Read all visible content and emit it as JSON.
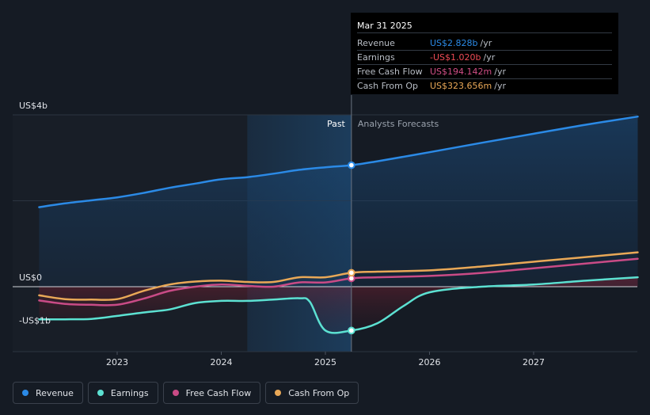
{
  "tooltip": {
    "date": "Mar 31 2025",
    "rows": [
      {
        "label": "Revenue",
        "value": "US$2.828b",
        "unit": "/yr",
        "color": "#2b8ae6"
      },
      {
        "label": "Earnings",
        "value": "-US$1.020b",
        "unit": "/yr",
        "color": "#ef4b55"
      },
      {
        "label": "Free Cash Flow",
        "value": "US$194.142m",
        "unit": "/yr",
        "color": "#d14e86"
      },
      {
        "label": "Cash From Op",
        "value": "US$323.656m",
        "unit": "/yr",
        "color": "#e9a857"
      }
    ]
  },
  "past_label": "Past",
  "forecast_label": "Analysts Forecasts",
  "legend": [
    {
      "label": "Revenue",
      "color": "#2b8ae6",
      "icon": "dot"
    },
    {
      "label": "Earnings",
      "color": "#5ce1d2",
      "icon": "dot"
    },
    {
      "label": "Free Cash Flow",
      "color": "#c94b86",
      "icon": "dot"
    },
    {
      "label": "Cash From Op",
      "color": "#e9a857",
      "icon": "dot"
    }
  ],
  "chart_data": {
    "type": "line",
    "unit": "US$ billions",
    "y_tick_labels": [
      "US$4b",
      "US$0",
      "-US$1b"
    ],
    "y_ticks": [
      4,
      0,
      -1
    ],
    "ylim": [
      -1.5,
      4
    ],
    "x_tick_labels": [
      "2023",
      "2024",
      "2025",
      "2026",
      "2027"
    ],
    "x_ticks": [
      2023,
      2024,
      2025,
      2026,
      2027
    ],
    "xlim": [
      2021.9,
      2028.0
    ],
    "past_end": 2025.25,
    "highlight_start": 2024.25,
    "series": [
      {
        "name": "Revenue",
        "color": "#2b8ae6",
        "points": [
          [
            2022.25,
            1.85
          ],
          [
            2022.5,
            1.94
          ],
          [
            2022.75,
            2.01
          ],
          [
            2023.0,
            2.08
          ],
          [
            2023.25,
            2.18
          ],
          [
            2023.5,
            2.3
          ],
          [
            2023.75,
            2.4
          ],
          [
            2024.0,
            2.5
          ],
          [
            2024.25,
            2.55
          ],
          [
            2024.5,
            2.63
          ],
          [
            2024.75,
            2.72
          ],
          [
            2025.0,
            2.78
          ],
          [
            2025.25,
            2.828
          ],
          [
            2025.5,
            2.92
          ],
          [
            2026.0,
            3.13
          ],
          [
            2026.5,
            3.35
          ],
          [
            2027.0,
            3.56
          ],
          [
            2027.5,
            3.77
          ],
          [
            2028.0,
            3.96
          ]
        ]
      },
      {
        "name": "Earnings",
        "color": "#5ce1d2",
        "points": [
          [
            2022.25,
            -0.76
          ],
          [
            2022.5,
            -0.76
          ],
          [
            2022.75,
            -0.75
          ],
          [
            2023.0,
            -0.68
          ],
          [
            2023.25,
            -0.6
          ],
          [
            2023.5,
            -0.53
          ],
          [
            2023.75,
            -0.38
          ],
          [
            2024.0,
            -0.33
          ],
          [
            2024.25,
            -0.33
          ],
          [
            2024.5,
            -0.3
          ],
          [
            2024.75,
            -0.27
          ],
          [
            2024.85,
            -0.35
          ],
          [
            2025.0,
            -1.02
          ],
          [
            2025.25,
            -1.02
          ],
          [
            2025.5,
            -0.85
          ],
          [
            2025.75,
            -0.45
          ],
          [
            2026.0,
            -0.13
          ],
          [
            2026.5,
            0.0
          ],
          [
            2027.0,
            0.05
          ],
          [
            2027.5,
            0.14
          ],
          [
            2028.0,
            0.22
          ]
        ]
      },
      {
        "name": "Free Cash Flow",
        "color": "#c94b86",
        "points": [
          [
            2022.25,
            -0.32
          ],
          [
            2022.5,
            -0.4
          ],
          [
            2022.75,
            -0.42
          ],
          [
            2023.0,
            -0.42
          ],
          [
            2023.25,
            -0.28
          ],
          [
            2023.5,
            -0.1
          ],
          [
            2023.75,
            0.0
          ],
          [
            2024.0,
            0.05
          ],
          [
            2024.25,
            0.02
          ],
          [
            2024.5,
            0.0
          ],
          [
            2024.75,
            0.1
          ],
          [
            2025.0,
            0.1
          ],
          [
            2025.25,
            0.194
          ],
          [
            2025.5,
            0.22
          ],
          [
            2026.0,
            0.25
          ],
          [
            2026.5,
            0.32
          ],
          [
            2027.0,
            0.43
          ],
          [
            2027.5,
            0.54
          ],
          [
            2028.0,
            0.65
          ]
        ]
      },
      {
        "name": "Cash From Op",
        "color": "#e9a857",
        "points": [
          [
            2022.25,
            -0.2
          ],
          [
            2022.5,
            -0.29
          ],
          [
            2022.75,
            -0.3
          ],
          [
            2023.0,
            -0.29
          ],
          [
            2023.25,
            -0.1
          ],
          [
            2023.5,
            0.05
          ],
          [
            2023.75,
            0.12
          ],
          [
            2024.0,
            0.14
          ],
          [
            2024.25,
            0.11
          ],
          [
            2024.5,
            0.11
          ],
          [
            2024.75,
            0.22
          ],
          [
            2025.0,
            0.22
          ],
          [
            2025.25,
            0.324
          ],
          [
            2025.5,
            0.35
          ],
          [
            2026.0,
            0.38
          ],
          [
            2026.5,
            0.47
          ],
          [
            2027.0,
            0.58
          ],
          [
            2027.5,
            0.69
          ],
          [
            2028.0,
            0.8
          ]
        ]
      }
    ],
    "markers": [
      {
        "series": "Revenue",
        "x": 2025.25,
        "y": 2.828
      },
      {
        "series": "Earnings",
        "x": 2025.25,
        "y": -1.02
      },
      {
        "series": "Free Cash Flow",
        "x": 2025.25,
        "y": 0.194
      },
      {
        "series": "Cash From Op",
        "x": 2025.25,
        "y": 0.324
      }
    ],
    "grid": true
  }
}
